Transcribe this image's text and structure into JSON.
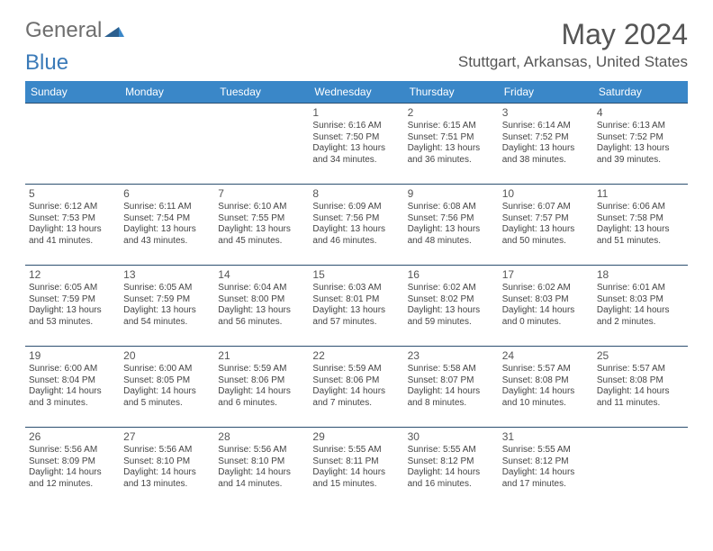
{
  "logo": {
    "text1": "General",
    "text2": "Blue"
  },
  "header": {
    "monthTitle": "May 2024",
    "location": "Stuttgart, Arkansas, United States"
  },
  "colors": {
    "headerBg": "#3a87c8",
    "headerText": "#ffffff",
    "rowBorder": "#2c4f70",
    "logoGray": "#6e6e6e",
    "logoBlue": "#3a7ab8",
    "text": "#444444",
    "titleGray": "#555555"
  },
  "dayHeaders": [
    "Sunday",
    "Monday",
    "Tuesday",
    "Wednesday",
    "Thursday",
    "Friday",
    "Saturday"
  ],
  "weeks": [
    [
      null,
      null,
      null,
      {
        "n": "1",
        "sr": "6:16 AM",
        "ss": "7:50 PM",
        "dl": "13 hours and 34 minutes."
      },
      {
        "n": "2",
        "sr": "6:15 AM",
        "ss": "7:51 PM",
        "dl": "13 hours and 36 minutes."
      },
      {
        "n": "3",
        "sr": "6:14 AM",
        "ss": "7:52 PM",
        "dl": "13 hours and 38 minutes."
      },
      {
        "n": "4",
        "sr": "6:13 AM",
        "ss": "7:52 PM",
        "dl": "13 hours and 39 minutes."
      }
    ],
    [
      {
        "n": "5",
        "sr": "6:12 AM",
        "ss": "7:53 PM",
        "dl": "13 hours and 41 minutes."
      },
      {
        "n": "6",
        "sr": "6:11 AM",
        "ss": "7:54 PM",
        "dl": "13 hours and 43 minutes."
      },
      {
        "n": "7",
        "sr": "6:10 AM",
        "ss": "7:55 PM",
        "dl": "13 hours and 45 minutes."
      },
      {
        "n": "8",
        "sr": "6:09 AM",
        "ss": "7:56 PM",
        "dl": "13 hours and 46 minutes."
      },
      {
        "n": "9",
        "sr": "6:08 AM",
        "ss": "7:56 PM",
        "dl": "13 hours and 48 minutes."
      },
      {
        "n": "10",
        "sr": "6:07 AM",
        "ss": "7:57 PM",
        "dl": "13 hours and 50 minutes."
      },
      {
        "n": "11",
        "sr": "6:06 AM",
        "ss": "7:58 PM",
        "dl": "13 hours and 51 minutes."
      }
    ],
    [
      {
        "n": "12",
        "sr": "6:05 AM",
        "ss": "7:59 PM",
        "dl": "13 hours and 53 minutes."
      },
      {
        "n": "13",
        "sr": "6:05 AM",
        "ss": "7:59 PM",
        "dl": "13 hours and 54 minutes."
      },
      {
        "n": "14",
        "sr": "6:04 AM",
        "ss": "8:00 PM",
        "dl": "13 hours and 56 minutes."
      },
      {
        "n": "15",
        "sr": "6:03 AM",
        "ss": "8:01 PM",
        "dl": "13 hours and 57 minutes."
      },
      {
        "n": "16",
        "sr": "6:02 AM",
        "ss": "8:02 PM",
        "dl": "13 hours and 59 minutes."
      },
      {
        "n": "17",
        "sr": "6:02 AM",
        "ss": "8:03 PM",
        "dl": "14 hours and 0 minutes."
      },
      {
        "n": "18",
        "sr": "6:01 AM",
        "ss": "8:03 PM",
        "dl": "14 hours and 2 minutes."
      }
    ],
    [
      {
        "n": "19",
        "sr": "6:00 AM",
        "ss": "8:04 PM",
        "dl": "14 hours and 3 minutes."
      },
      {
        "n": "20",
        "sr": "6:00 AM",
        "ss": "8:05 PM",
        "dl": "14 hours and 5 minutes."
      },
      {
        "n": "21",
        "sr": "5:59 AM",
        "ss": "8:06 PM",
        "dl": "14 hours and 6 minutes."
      },
      {
        "n": "22",
        "sr": "5:59 AM",
        "ss": "8:06 PM",
        "dl": "14 hours and 7 minutes."
      },
      {
        "n": "23",
        "sr": "5:58 AM",
        "ss": "8:07 PM",
        "dl": "14 hours and 8 minutes."
      },
      {
        "n": "24",
        "sr": "5:57 AM",
        "ss": "8:08 PM",
        "dl": "14 hours and 10 minutes."
      },
      {
        "n": "25",
        "sr": "5:57 AM",
        "ss": "8:08 PM",
        "dl": "14 hours and 11 minutes."
      }
    ],
    [
      {
        "n": "26",
        "sr": "5:56 AM",
        "ss": "8:09 PM",
        "dl": "14 hours and 12 minutes."
      },
      {
        "n": "27",
        "sr": "5:56 AM",
        "ss": "8:10 PM",
        "dl": "14 hours and 13 minutes."
      },
      {
        "n": "28",
        "sr": "5:56 AM",
        "ss": "8:10 PM",
        "dl": "14 hours and 14 minutes."
      },
      {
        "n": "29",
        "sr": "5:55 AM",
        "ss": "8:11 PM",
        "dl": "14 hours and 15 minutes."
      },
      {
        "n": "30",
        "sr": "5:55 AM",
        "ss": "8:12 PM",
        "dl": "14 hours and 16 minutes."
      },
      {
        "n": "31",
        "sr": "5:55 AM",
        "ss": "8:12 PM",
        "dl": "14 hours and 17 minutes."
      },
      null
    ]
  ],
  "labels": {
    "sunrise": "Sunrise: ",
    "sunset": "Sunset: ",
    "daylight": "Daylight: "
  }
}
